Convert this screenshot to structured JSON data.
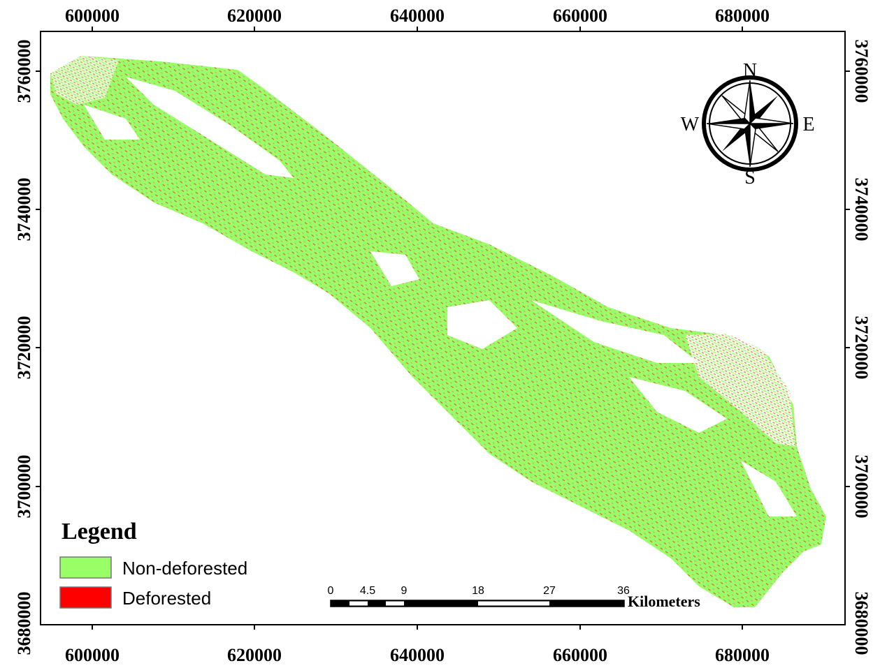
{
  "map": {
    "x_ticks": [
      "600000",
      "620000",
      "640000",
      "660000",
      "680000"
    ],
    "y_ticks": [
      "3760000",
      "3740000",
      "3720000",
      "3700000",
      "3680000"
    ],
    "colors": {
      "non_deforested": "#99ff66",
      "deforested": "#ff0000",
      "frame": "#000000"
    }
  },
  "compass": {
    "north": "N",
    "south": "S",
    "east": "E",
    "west": "W",
    "icon": "compass-rose-icon"
  },
  "legend": {
    "title": "Legend",
    "items": [
      {
        "label": "Non-deforested",
        "color": "#99ff66"
      },
      {
        "label": "Deforested",
        "color": "#ff0000"
      }
    ]
  },
  "scale_bar": {
    "labels": [
      "0",
      "4.5",
      "9",
      "18",
      "27",
      "36"
    ],
    "unit": "Kilometers"
  }
}
